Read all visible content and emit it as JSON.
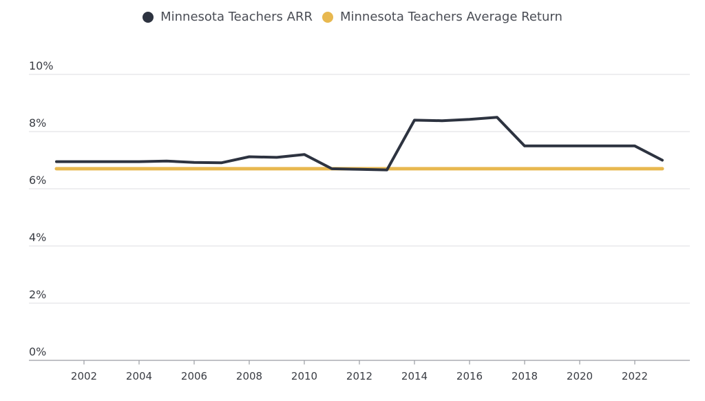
{
  "chart_data": {
    "type": "line",
    "x": [
      2001,
      2002,
      2003,
      2004,
      2005,
      2006,
      2007,
      2008,
      2009,
      2010,
      2011,
      2012,
      2013,
      2014,
      2015,
      2016,
      2017,
      2018,
      2019,
      2020,
      2021,
      2022,
      2023
    ],
    "series": [
      {
        "name": "Minnesota Teachers ARR",
        "color": "#2d3340",
        "values": [
          6.95,
          6.95,
          6.95,
          6.95,
          6.97,
          6.92,
          6.91,
          7.12,
          7.1,
          7.2,
          6.7,
          6.68,
          6.66,
          8.4,
          8.38,
          8.43,
          8.5,
          7.5,
          7.5,
          7.5,
          7.5,
          7.5,
          7.0
        ]
      },
      {
        "name": "Minnesota Teachers Average Return",
        "color": "#e8b84f",
        "values": [
          6.7,
          6.7,
          6.7,
          6.7,
          6.7,
          6.7,
          6.7,
          6.7,
          6.7,
          6.7,
          6.7,
          6.7,
          6.7,
          6.7,
          6.7,
          6.7,
          6.7,
          6.7,
          6.7,
          6.7,
          6.7,
          6.7,
          6.7
        ]
      }
    ],
    "xticks": [
      2002,
      2004,
      2006,
      2008,
      2010,
      2012,
      2014,
      2016,
      2018,
      2020,
      2022
    ],
    "yticks": [
      0,
      2,
      4,
      6,
      8,
      10
    ],
    "ytick_labels": [
      "0%",
      "2%",
      "4%",
      "6%",
      "8%",
      "10%"
    ],
    "ylim": [
      0,
      10
    ],
    "xlim": [
      2000,
      2024
    ],
    "grid": true,
    "legend_position": "top-center"
  }
}
